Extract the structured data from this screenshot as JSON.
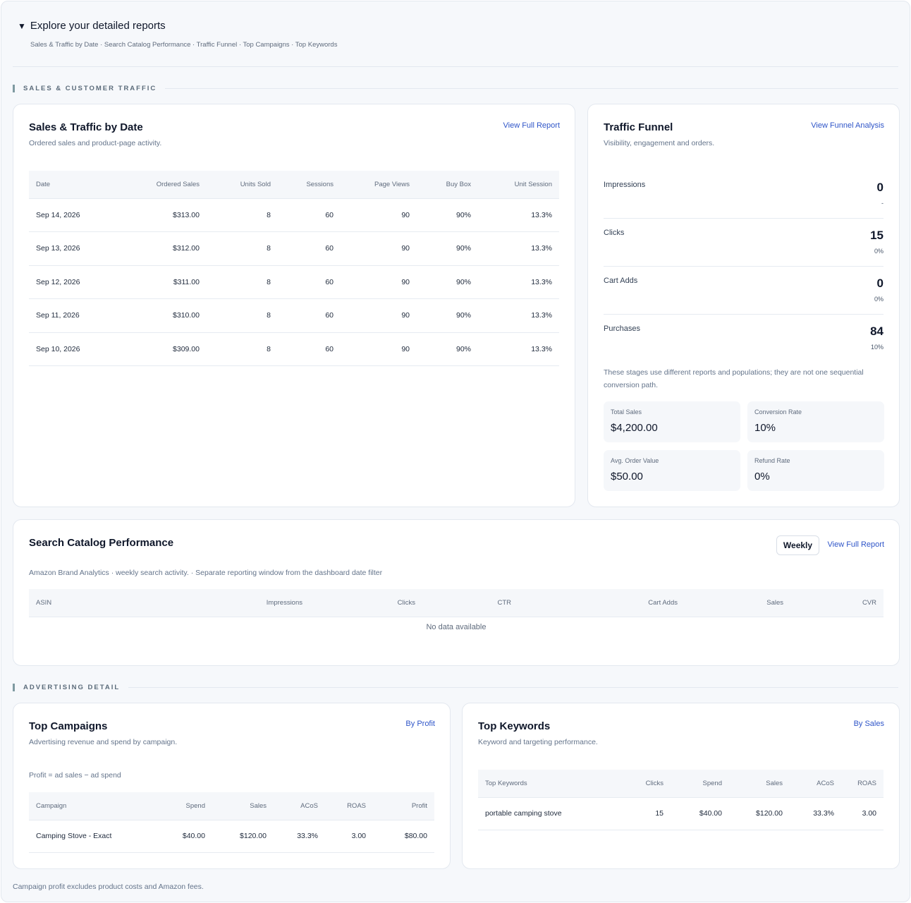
{
  "explore": {
    "title": "Explore your detailed reports",
    "subtitle": "Sales & Traffic by Date · Search Catalog Performance · Traffic Funnel · Top Campaigns · Top Keywords"
  },
  "sections": {
    "sales_traffic": "SALES & CUSTOMER TRAFFIC",
    "advertising": "ADVERTISING DETAIL"
  },
  "sales_by_date": {
    "title": "Sales & Traffic by Date",
    "subtitle": "Ordered sales and product-page activity.",
    "link": "View Full Report",
    "columns": [
      "Date",
      "Ordered Sales",
      "Units Sold",
      "Sessions",
      "Page Views",
      "Buy Box",
      "Unit Session"
    ],
    "rows": [
      [
        "Sep 14, 2026",
        "$313.00",
        "8",
        "60",
        "90",
        "90%",
        "13.3%"
      ],
      [
        "Sep 13, 2026",
        "$312.00",
        "8",
        "60",
        "90",
        "90%",
        "13.3%"
      ],
      [
        "Sep 12, 2026",
        "$311.00",
        "8",
        "60",
        "90",
        "90%",
        "13.3%"
      ],
      [
        "Sep 11, 2026",
        "$310.00",
        "8",
        "60",
        "90",
        "90%",
        "13.3%"
      ],
      [
        "Sep 10, 2026",
        "$309.00",
        "8",
        "60",
        "90",
        "90%",
        "13.3%"
      ]
    ]
  },
  "funnel": {
    "title": "Traffic Funnel",
    "subtitle": "Visibility, engagement and orders.",
    "link": "View Funnel Analysis",
    "stages": [
      {
        "name": "Impressions",
        "value": "0",
        "pct": "-"
      },
      {
        "name": "Clicks",
        "value": "15",
        "pct": "0%"
      },
      {
        "name": "Cart Adds",
        "value": "0",
        "pct": "0%"
      },
      {
        "name": "Purchases",
        "value": "84",
        "pct": "10%"
      }
    ],
    "note": "These stages use different reports and populations; they are not one sequential conversion path.",
    "stats": [
      {
        "label": "Total Sales",
        "value": "$4,200.00"
      },
      {
        "label": "Conversion Rate",
        "value": "10%"
      },
      {
        "label": "Avg. Order Value",
        "value": "$50.00"
      },
      {
        "label": "Refund Rate",
        "value": "0%"
      }
    ]
  },
  "search_catalog": {
    "title": "Search Catalog Performance",
    "toggle": "Weekly",
    "link": "View Full Report",
    "subtitle": "Amazon Brand Analytics · weekly search activity. · Separate reporting window from the dashboard date filter",
    "columns": [
      "ASIN",
      "Impressions",
      "Clicks",
      "CTR",
      "Cart Adds",
      "Sales",
      "CVR"
    ],
    "empty": "No data available"
  },
  "campaigns": {
    "title": "Top Campaigns",
    "subtitle": "Advertising revenue and spend by campaign.",
    "link": "By Profit",
    "note": "Profit = ad sales − ad spend",
    "columns": [
      "Campaign",
      "Spend",
      "Sales",
      "ACoS",
      "ROAS",
      "Profit"
    ],
    "rows": [
      [
        "Camping Stove - Exact",
        "$40.00",
        "$120.00",
        "33.3%",
        "3.00",
        "$80.00"
      ]
    ]
  },
  "keywords": {
    "title": "Top Keywords",
    "subtitle": "Keyword and targeting performance.",
    "link": "By Sales",
    "columns": [
      "Top Keywords",
      "Clicks",
      "Spend",
      "Sales",
      "ACoS",
      "ROAS"
    ],
    "rows": [
      [
        "portable camping stove",
        "15",
        "$40.00",
        "$120.00",
        "33.3%",
        "3.00"
      ]
    ]
  },
  "footer": "Campaign profit excludes product costs and Amazon fees."
}
